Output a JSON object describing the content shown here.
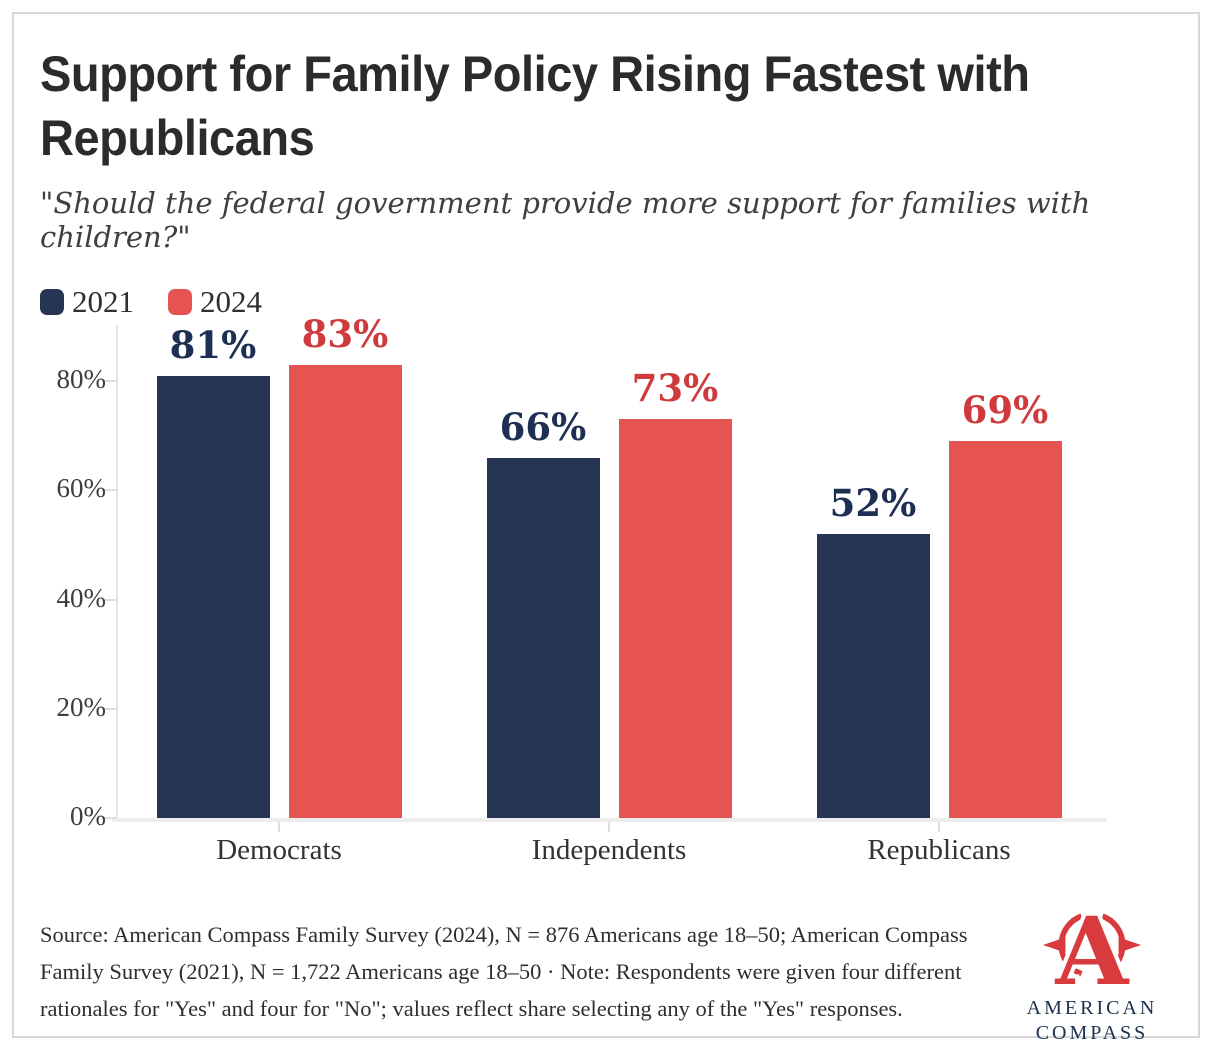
{
  "header": {
    "title_lines": [
      "Support for Family Policy Rising Fastest with",
      "Republicans"
    ],
    "subtitle": "\"Should the federal government provide more support for families with children?\""
  },
  "legend": [
    {
      "label": "2021",
      "color": "#273554"
    },
    {
      "label": "2024",
      "color": "#e65452"
    }
  ],
  "chart_data": {
    "type": "bar",
    "title": "Support for Family Policy Rising Fastest with Republicans",
    "subtitle": "\"Should the federal government provide more support for families with children?\"",
    "categories": [
      "Democrats",
      "Independents",
      "Republicans"
    ],
    "series": [
      {
        "name": "2021",
        "values": [
          81,
          66,
          52
        ],
        "color": "#273554",
        "label_color": "#1e2f54"
      },
      {
        "name": "2024",
        "values": [
          83,
          73,
          69
        ],
        "color": "#e65452",
        "label_color": "#cf3a3c"
      }
    ],
    "value_suffix": "%",
    "y_ticks": [
      "0%",
      "20%",
      "40%",
      "60%",
      "80%"
    ],
    "ylim": [
      0,
      90
    ],
    "grid": false,
    "legend_position": "top-left"
  },
  "footer": {
    "source_lines": [
      "Source: American Compass Family Survey (2024), N = 876 Americans age 18–50; American Compass",
      "Family Survey (2021), N = 1,722 Americans age 18–50 · Note: Respondents were given four different",
      "rationales for \"Yes\" and four for \"No\"; values reflect share selecting any of the \"Yes\" responses."
    ],
    "logo": {
      "org_line1": "AMERICAN",
      "org_line2": "COMPASS"
    }
  }
}
